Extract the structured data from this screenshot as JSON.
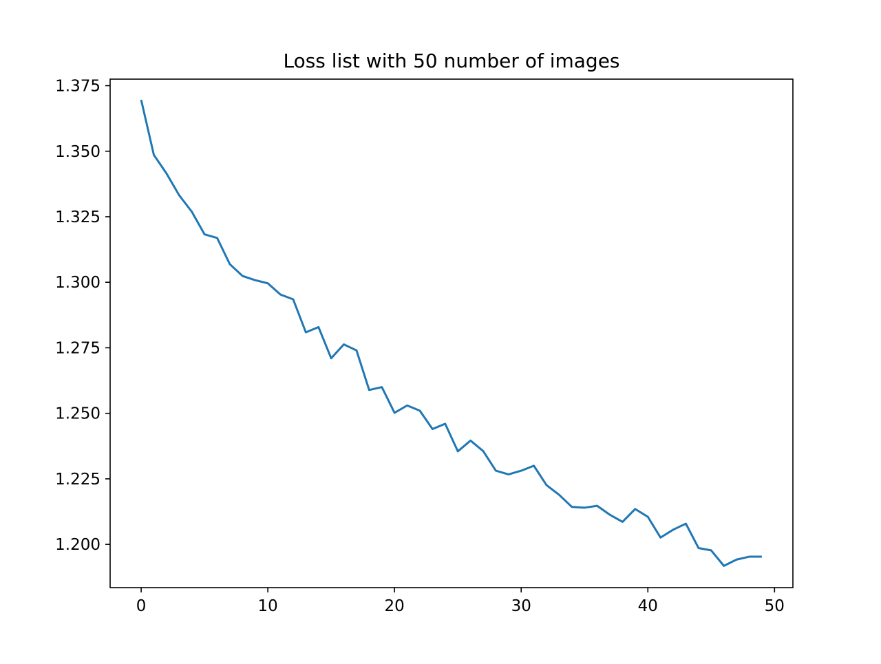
{
  "chart_data": {
    "type": "line",
    "title": "Loss list with 50 number of images",
    "xlabel": "",
    "ylabel": "",
    "grid": false,
    "legend": "none",
    "xlim": [
      -2.45,
      51.45
    ],
    "ylim": [
      1.1835,
      1.3775
    ],
    "xticks": [
      0,
      10,
      20,
      30,
      40,
      50
    ],
    "xtick_labels": [
      "0",
      "10",
      "20",
      "30",
      "40",
      "50"
    ],
    "yticks": [
      1.2,
      1.225,
      1.25,
      1.275,
      1.3,
      1.325,
      1.35,
      1.375
    ],
    "ytick_labels": [
      "1.200",
      "1.225",
      "1.250",
      "1.275",
      "1.300",
      "1.325",
      "1.350",
      "1.375"
    ],
    "series": [
      {
        "color": "#1f77b4",
        "x": [
          0,
          1,
          2,
          3,
          4,
          5,
          6,
          7,
          8,
          9,
          10,
          11,
          12,
          13,
          14,
          15,
          16,
          17,
          18,
          19,
          20,
          21,
          22,
          23,
          24,
          25,
          26,
          27,
          28,
          29,
          30,
          31,
          32,
          33,
          34,
          35,
          36,
          37,
          38,
          39,
          40,
          41,
          42,
          43,
          44,
          45,
          46,
          47,
          48,
          49
        ],
        "values": [
          1.3696,
          1.3486,
          1.3415,
          1.3332,
          1.3269,
          1.3183,
          1.3169,
          1.3069,
          1.3024,
          1.3008,
          1.2996,
          1.2953,
          1.2935,
          1.2809,
          1.2829,
          1.271,
          1.2763,
          1.274,
          1.2589,
          1.26,
          1.2502,
          1.253,
          1.251,
          1.244,
          1.246,
          1.2355,
          1.2396,
          1.2356,
          1.2281,
          1.2267,
          1.2281,
          1.23,
          1.2226,
          1.2189,
          1.2143,
          1.214,
          1.2147,
          1.2113,
          1.2086,
          1.2135,
          1.2105,
          1.2026,
          1.2056,
          1.2079,
          1.1986,
          1.1977,
          1.1918,
          1.1942,
          1.1953,
          1.1953
        ]
      }
    ]
  }
}
